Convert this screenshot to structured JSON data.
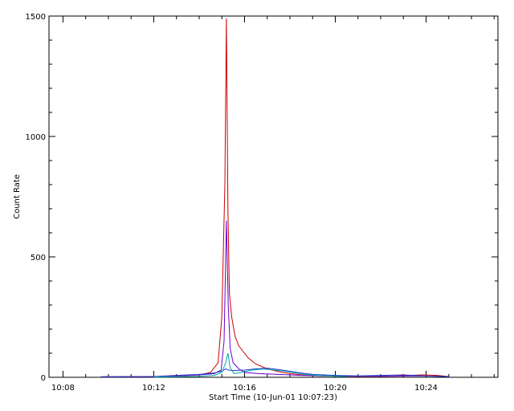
{
  "chart_data": {
    "type": "line",
    "title": "",
    "xlabel": "Start Time (10-Jun-01 10:07:23)",
    "ylabel": "Count Rate",
    "x_unit": "time",
    "xlim": [
      "10:07:23",
      "10:27:10"
    ],
    "ylim": [
      0,
      1500
    ],
    "xticks": [
      "10:08",
      "10:12",
      "10:16",
      "10:20",
      "10:24"
    ],
    "yticks": [
      0,
      500,
      1000,
      1500
    ],
    "grid": false,
    "colors": {
      "red": "#cc0000",
      "purple": "#6600cc",
      "blue": "#1f3cc8",
      "cyan": "#00a6a6"
    },
    "series": [
      {
        "color": "red",
        "x": [
          "10:09:40",
          "10:12:00",
          "10:13:00",
          "10:14:00",
          "10:14:30",
          "10:14:50",
          "10:15:00",
          "10:15:08",
          "10:15:12",
          "10:15:16",
          "10:15:20",
          "10:15:26",
          "10:15:35",
          "10:15:45",
          "10:15:55",
          "10:16:10",
          "10:16:30",
          "10:17:00",
          "10:17:40",
          "10:18:30",
          "10:19:30",
          "10:21:00",
          "10:22:30",
          "10:23:50",
          "10:24:30",
          "10:25:00"
        ],
        "y": [
          2,
          3,
          5,
          10,
          20,
          60,
          250,
          800,
          1490,
          700,
          350,
          250,
          170,
          130,
          110,
          80,
          55,
          35,
          20,
          10,
          5,
          4,
          5,
          10,
          8,
          3
        ]
      },
      {
        "color": "purple",
        "x": [
          "10:09:40",
          "10:12:00",
          "10:13:00",
          "10:14:00",
          "10:14:40",
          "10:14:58",
          "10:15:06",
          "10:15:12",
          "10:15:17",
          "10:15:22",
          "10:15:30",
          "10:15:45",
          "10:16:00",
          "10:16:40",
          "10:17:30",
          "10:18:30",
          "10:20:00",
          "10:22:00",
          "10:23:50",
          "10:25:00"
        ],
        "y": [
          2,
          3,
          6,
          10,
          15,
          30,
          150,
          650,
          300,
          120,
          60,
          35,
          20,
          15,
          12,
          8,
          5,
          4,
          6,
          3
        ]
      },
      {
        "color": "blue",
        "x": [
          "10:09:40",
          "10:12:00",
          "10:13:00",
          "10:14:00",
          "10:14:40",
          "10:15:00",
          "10:15:10",
          "10:15:18",
          "10:15:30",
          "10:16:00",
          "10:16:30",
          "10:17:00",
          "10:17:30",
          "10:18:00",
          "10:18:30",
          "10:19:00",
          "10:20:00",
          "10:21:00",
          "10:22:00",
          "10:23:00",
          "10:23:50",
          "10:25:00"
        ],
        "y": [
          2,
          3,
          8,
          12,
          18,
          25,
          35,
          30,
          28,
          30,
          35,
          38,
          32,
          25,
          18,
          12,
          8,
          6,
          8,
          10,
          6,
          3
        ]
      },
      {
        "color": "cyan",
        "x": [
          "10:12:00",
          "10:13:00",
          "10:14:00",
          "10:14:40",
          "10:15:00",
          "10:15:10",
          "10:15:16",
          "10:15:22",
          "10:15:32",
          "10:15:50",
          "10:16:20",
          "10:16:50",
          "10:17:20",
          "10:18:00",
          "10:18:40",
          "10:19:30",
          "10:20:30"
        ],
        "y": [
          1,
          2,
          4,
          8,
          20,
          60,
          100,
          40,
          15,
          20,
          30,
          34,
          30,
          22,
          12,
          6,
          3
        ]
      }
    ]
  }
}
